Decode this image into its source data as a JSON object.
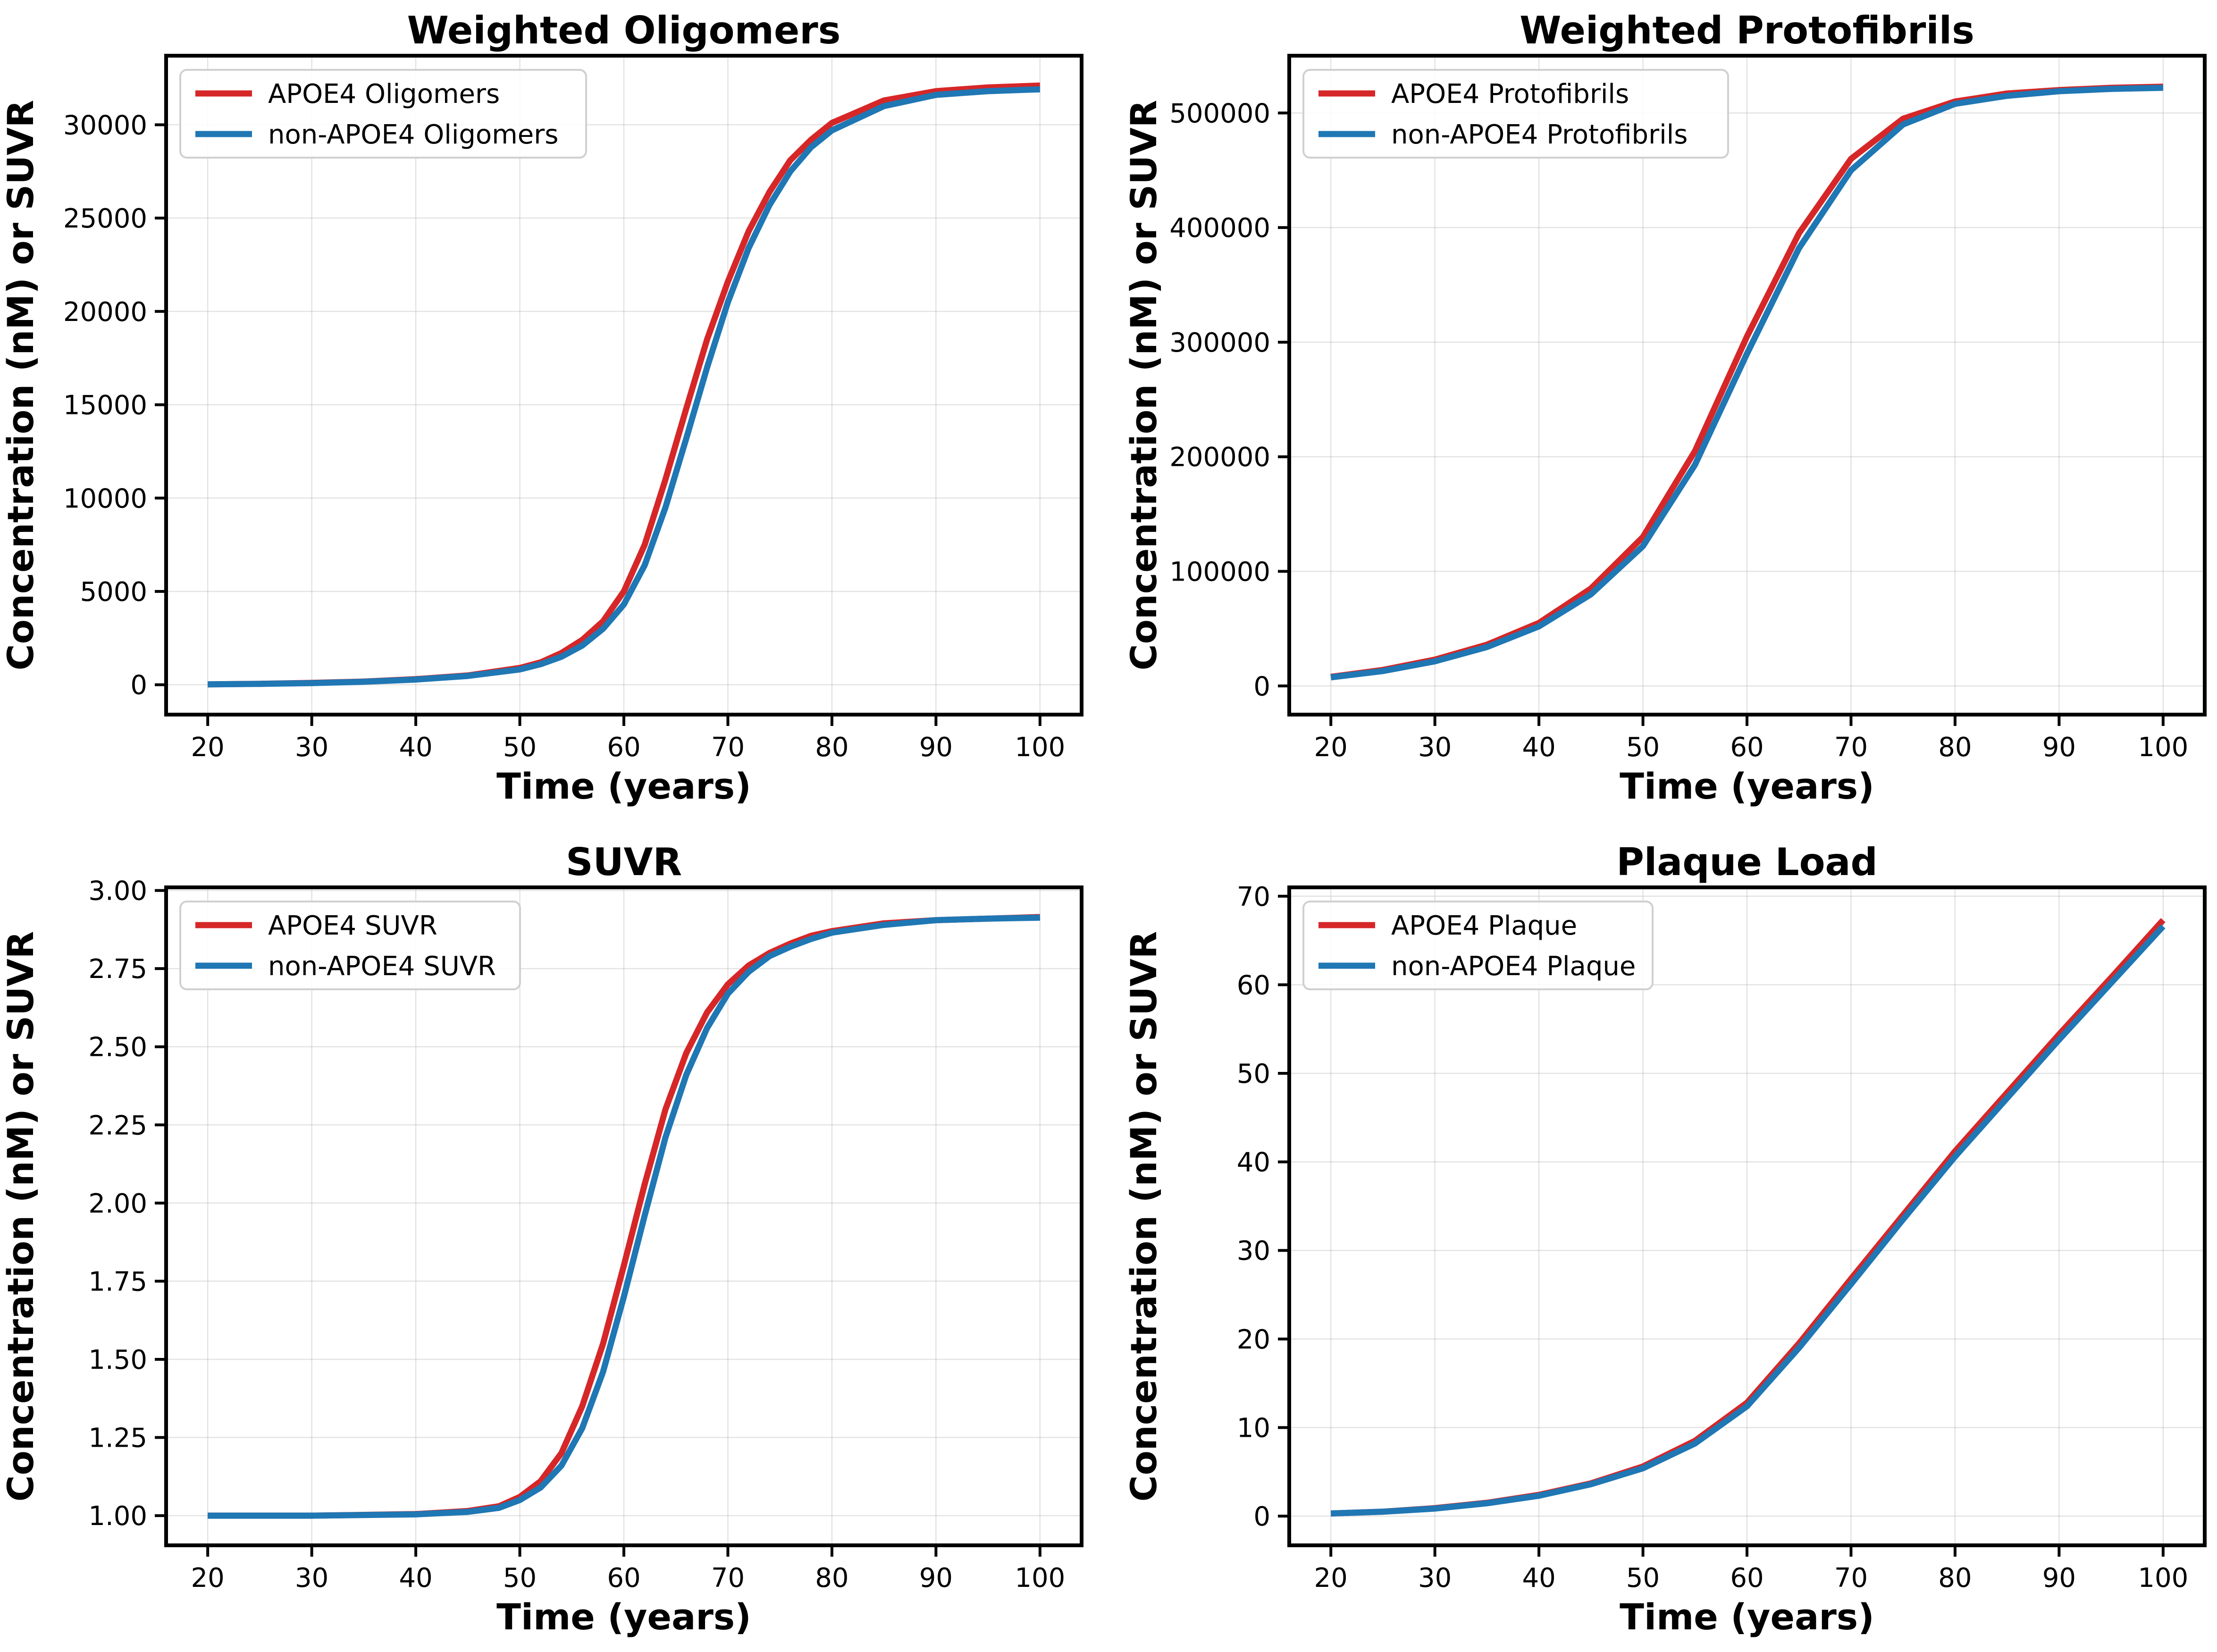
{
  "colors": {
    "apoe4": "#d62728",
    "non_apoe4": "#1f77b4"
  },
  "chart_data": [
    {
      "type": "line",
      "title": "Weighted Oligomers",
      "xlabel": "Time (years)",
      "ylabel": "Concentration (nM) or SUVR",
      "xlim": [
        16,
        104
      ],
      "ylim": [
        -1600,
        33700
      ],
      "xticks": [
        20,
        30,
        40,
        50,
        60,
        70,
        80,
        90,
        100
      ],
      "yticks": [
        0,
        5000,
        10000,
        15000,
        20000,
        25000,
        30000
      ],
      "grid": true,
      "legend": "upper-left",
      "x": [
        20,
        25,
        30,
        35,
        40,
        45,
        50,
        52,
        54,
        56,
        58,
        60,
        62,
        64,
        66,
        68,
        70,
        72,
        74,
        76,
        78,
        80,
        85,
        90,
        95,
        100
      ],
      "series": [
        {
          "name": "APOE4 Oligomers",
          "color": "#d62728",
          "values": [
            20,
            50,
            100,
            170,
            300,
            500,
            900,
            1200,
            1700,
            2400,
            3400,
            5000,
            7500,
            11000,
            14800,
            18500,
            21600,
            24300,
            26400,
            28100,
            29200,
            30100,
            31300,
            31800,
            32000,
            32100
          ]
        },
        {
          "name": "non-APOE4 Oligomers",
          "color": "#1f77b4",
          "values": [
            20,
            45,
            90,
            160,
            280,
            470,
            820,
            1100,
            1500,
            2100,
            3000,
            4300,
            6400,
            9500,
            13200,
            17000,
            20500,
            23400,
            25700,
            27500,
            28800,
            29700,
            31000,
            31600,
            31800,
            31900
          ]
        }
      ]
    },
    {
      "type": "line",
      "title": "Weighted Protofibrils",
      "xlabel": "Time (years)",
      "ylabel": "Concentration (nM) or SUVR",
      "xlim": [
        16,
        104
      ],
      "ylim": [
        -25000,
        550000
      ],
      "xticks": [
        20,
        30,
        40,
        50,
        60,
        70,
        80,
        90,
        100
      ],
      "yticks": [
        0,
        100000,
        200000,
        300000,
        400000,
        500000
      ],
      "grid": true,
      "legend": "upper-left",
      "x": [
        20,
        25,
        30,
        35,
        40,
        45,
        50,
        55,
        60,
        65,
        70,
        75,
        80,
        85,
        90,
        95,
        100
      ],
      "series": [
        {
          "name": "APOE4 Protofibrils",
          "color": "#d62728",
          "values": [
            8000,
            14000,
            23000,
            36000,
            55000,
            85000,
            130000,
            205000,
            305000,
            395000,
            460000,
            495000,
            510000,
            517000,
            520000,
            522000,
            523000
          ]
        },
        {
          "name": "non-APOE4 Protofibrils",
          "color": "#1f77b4",
          "values": [
            7500,
            13000,
            21500,
            34000,
            52000,
            80000,
            122000,
            193000,
            290000,
            382000,
            450000,
            490000,
            508000,
            515000,
            519000,
            521000,
            522000
          ]
        }
      ]
    },
    {
      "type": "line",
      "title": "SUVR",
      "xlabel": "Time (years)",
      "ylabel": "Concentration (nM) or SUVR",
      "xlim": [
        16,
        104
      ],
      "ylim": [
        0.905,
        3.01
      ],
      "xticks": [
        20,
        30,
        40,
        50,
        60,
        70,
        80,
        90,
        100
      ],
      "yticks": [
        1.0,
        1.25,
        1.5,
        1.75,
        2.0,
        2.25,
        2.5,
        2.75,
        3.0
      ],
      "ytick_labels": [
        "1.00",
        "1.25",
        "1.50",
        "1.75",
        "2.00",
        "2.25",
        "2.50",
        "2.75",
        "3.00"
      ],
      "grid": true,
      "legend": "upper-left",
      "x": [
        20,
        30,
        40,
        45,
        48,
        50,
        52,
        54,
        56,
        58,
        60,
        62,
        64,
        66,
        68,
        70,
        72,
        74,
        76,
        78,
        80,
        85,
        90,
        95,
        100
      ],
      "series": [
        {
          "name": "APOE4 SUVR",
          "color": "#d62728",
          "values": [
            1.0,
            1.0,
            1.005,
            1.015,
            1.03,
            1.06,
            1.11,
            1.2,
            1.35,
            1.55,
            1.8,
            2.06,
            2.3,
            2.48,
            2.61,
            2.7,
            2.76,
            2.8,
            2.83,
            2.855,
            2.87,
            2.895,
            2.905,
            2.91,
            2.915
          ]
        },
        {
          "name": "non-APOE4 SUVR",
          "color": "#1f77b4",
          "values": [
            1.0,
            1.0,
            1.004,
            1.012,
            1.025,
            1.05,
            1.09,
            1.16,
            1.28,
            1.46,
            1.7,
            1.96,
            2.21,
            2.41,
            2.56,
            2.67,
            2.74,
            2.79,
            2.82,
            2.845,
            2.865,
            2.89,
            2.905,
            2.91,
            2.913
          ]
        }
      ]
    },
    {
      "type": "line",
      "title": "Plaque Load",
      "xlabel": "Time (years)",
      "ylabel": "Concentration (nM) or SUVR",
      "xlim": [
        16,
        104
      ],
      "ylim": [
        -3.3,
        71
      ],
      "xticks": [
        20,
        30,
        40,
        50,
        60,
        70,
        80,
        90,
        100
      ],
      "yticks": [
        0,
        10,
        20,
        30,
        40,
        50,
        60,
        70
      ],
      "grid": true,
      "legend": "upper-left",
      "x": [
        20,
        25,
        30,
        35,
        40,
        45,
        50,
        55,
        60,
        65,
        70,
        75,
        80,
        85,
        90,
        95,
        100
      ],
      "series": [
        {
          "name": "APOE4 Plaque",
          "color": "#d62728",
          "values": [
            0.3,
            0.5,
            0.9,
            1.5,
            2.4,
            3.7,
            5.6,
            8.5,
            12.8,
            19.5,
            26.8,
            34.0,
            41.2,
            47.8,
            54.4,
            60.8,
            67.3
          ]
        },
        {
          "name": "non-APOE4 Plaque",
          "color": "#1f77b4",
          "values": [
            0.3,
            0.5,
            0.85,
            1.45,
            2.3,
            3.6,
            5.4,
            8.2,
            12.4,
            19.0,
            26.2,
            33.5,
            40.6,
            47.2,
            53.8,
            60.2,
            66.6
          ]
        }
      ]
    }
  ]
}
